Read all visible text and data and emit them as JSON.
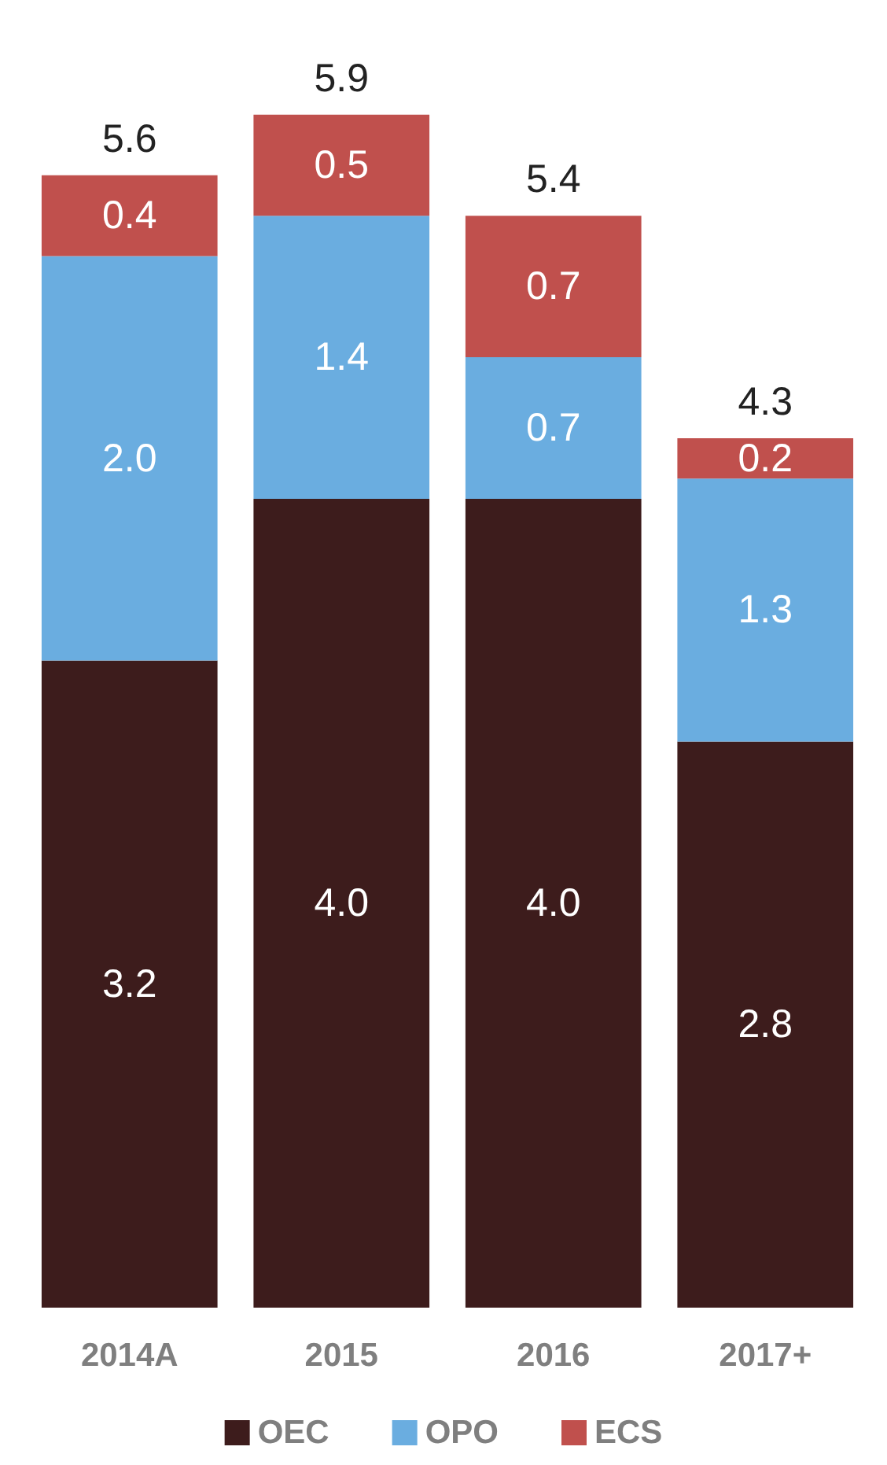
{
  "chart_data": {
    "type": "bar",
    "stacked": true,
    "categories": [
      "2014A",
      "2015",
      "2016",
      "2017+"
    ],
    "series": [
      {
        "name": "OEC",
        "color": "#3d1c1c",
        "values": [
          3.2,
          4,
          4,
          2.8
        ],
        "value_labels": [
          "3.2",
          "4.0",
          "4.0",
          "2.8"
        ]
      },
      {
        "name": "OPO",
        "color": "#6aade0",
        "values": [
          2,
          1.4,
          0.7,
          1.3
        ],
        "value_labels": [
          "2.0",
          "1.4",
          "0.7",
          "1.3"
        ]
      },
      {
        "name": "ECS",
        "color": "#c0504d",
        "values": [
          0.4,
          0.5,
          0.7,
          0.2
        ],
        "value_labels": [
          "0.4",
          "0.5",
          "0.7",
          "0.2"
        ]
      }
    ],
    "totals": [
      "5.6",
      "5.9",
      "5.4",
      "4.3"
    ],
    "legend": "bottom"
  }
}
